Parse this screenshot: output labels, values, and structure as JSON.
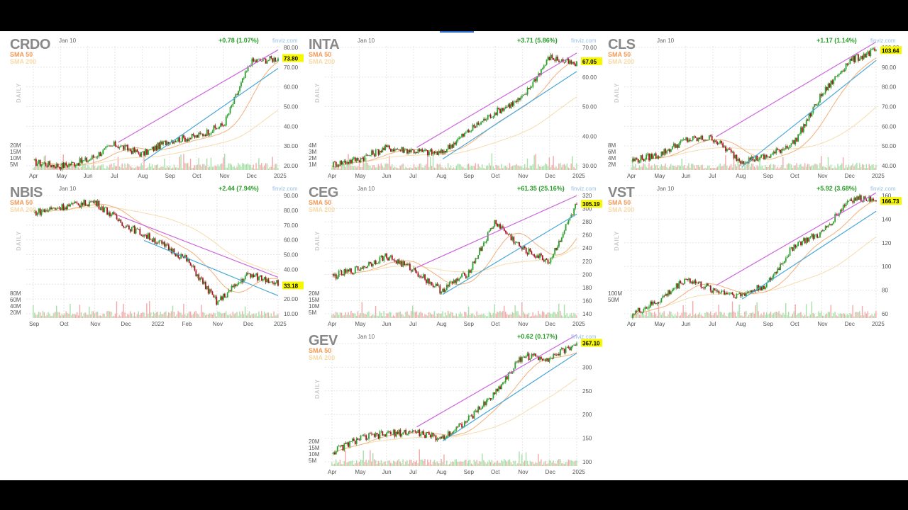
{
  "panels": [
    {
      "ticker": "CRDO",
      "date": "Jan 10",
      "change": "+0.78 (1.07%)",
      "price": "73.80",
      "source": "finviz.com",
      "sma50": "SMA 50",
      "sma200": "SMA 200",
      "daily": "DAILY",
      "yticks": [
        "80.00",
        "70.00",
        "60.00",
        "50.00",
        "40.00",
        "30.00",
        "20.00"
      ],
      "vticks": [
        "20M",
        "15M",
        "10M",
        "5M"
      ],
      "xticks": [
        "Apr",
        "May",
        "Jun",
        "Jul",
        "Aug",
        "Sep",
        "Oct",
        "Nov",
        "Dec",
        "2025"
      ]
    },
    {
      "ticker": "INTA",
      "date": "Jan 10",
      "change": "+3.71 (5.86%)",
      "price": "67.05",
      "source": "finviz.com",
      "sma50": "SMA 50",
      "sma200": "SMA 200",
      "daily": "DAILY",
      "yticks": [
        "70.00",
        "60.00",
        "50.00",
        "40.00",
        "30.00"
      ],
      "vticks": [
        "4M",
        "3M",
        "2M",
        "1M"
      ],
      "xticks": [
        "Apr",
        "May",
        "Jun",
        "Jul",
        "Aug",
        "Sep",
        "Oct",
        "Nov",
        "Dec",
        "2025"
      ]
    },
    {
      "ticker": "CLS",
      "date": "Jan 10",
      "change": "+1.17 (1.14%)",
      "price": "103.64",
      "source": "finviz.com",
      "sma50": "SMA 50",
      "sma200": "SMA 200",
      "daily": "DAILY",
      "yticks": [
        "100.00",
        "90.00",
        "80.00",
        "70.00",
        "60.00",
        "50.00",
        "40.00"
      ],
      "vticks": [
        "8M",
        "6M",
        "4M",
        "2M"
      ],
      "xticks": [
        "Apr",
        "May",
        "Jun",
        "Jul",
        "Aug",
        "Sep",
        "Oct",
        "Nov",
        "Dec",
        "2025"
      ]
    },
    {
      "ticker": "NBIS",
      "date": "Jan 10",
      "change": "+2.44 (7.94%)",
      "price": "33.18",
      "source": "finviz.com",
      "sma50": "SMA 50",
      "sma200": "SMA 200",
      "daily": "DAILY",
      "yticks": [
        "90.00",
        "80.00",
        "70.00",
        "60.00",
        "50.00",
        "40.00",
        "30.00",
        "20.00",
        "10.00"
      ],
      "vticks": [
        "80M",
        "60M",
        "40M",
        "20M"
      ],
      "xticks": [
        "Sep",
        "Oct",
        "Nov",
        "Dec",
        "2022",
        "Feb",
        "Nov",
        "Dec",
        "2025"
      ]
    },
    {
      "ticker": "CEG",
      "date": "Jan 10",
      "change": "+61.35 (25.16%)",
      "price": "305.19",
      "source": "finviz.com",
      "sma50": "SMA 50",
      "sma200": "SMA 200",
      "daily": "DAILY",
      "yticks": [
        "320",
        "300",
        "280",
        "260",
        "240",
        "220",
        "200",
        "180",
        "160",
        "140"
      ],
      "vticks": [
        "20M",
        "15M",
        "10M",
        "5M"
      ],
      "xticks": [
        "Apr",
        "May",
        "Jun",
        "Jul",
        "Aug",
        "Sep",
        "Oct",
        "Nov",
        "Dec",
        "2025"
      ]
    },
    {
      "ticker": "VST",
      "date": "Jan 10",
      "change": "+5.92 (3.68%)",
      "price": "166.73",
      "source": "finviz.com",
      "sma50": "SMA 50",
      "sma200": "SMA 200",
      "daily": "DAILY",
      "yticks": [
        "160",
        "140",
        "120",
        "100",
        "80",
        "60"
      ],
      "vticks": [
        "100M",
        "50M"
      ],
      "xticks": [
        "Apr",
        "May",
        "Jun",
        "Jul",
        "Aug",
        "Sep",
        "Oct",
        "Nov",
        "Dec",
        "2025"
      ]
    },
    {
      "ticker": "GEV",
      "date": "Jan 10",
      "change": "+0.62 (0.17%)",
      "price": "367.10",
      "source": "finviz.com",
      "sma50": "SMA 50",
      "sma200": "SMA 200",
      "daily": "DAILY",
      "yticks": [
        "350",
        "300",
        "250",
        "200",
        "150",
        "100"
      ],
      "vticks": [
        "20M",
        "15M",
        "10M",
        "5M"
      ],
      "xticks": [
        "Apr",
        "May",
        "Jun",
        "Jul",
        "Aug",
        "Sep",
        "Oct",
        "Nov",
        "Dec",
        "2025"
      ]
    }
  ],
  "chart_data": [
    {
      "type": "line",
      "ticker": "CRDO",
      "x": [
        "Apr",
        "May",
        "Jun",
        "Jul",
        "Aug",
        "Sep",
        "Oct",
        "Nov",
        "Dec",
        "2025"
      ],
      "y": [
        21,
        19,
        22,
        30,
        25,
        32,
        34,
        40,
        72,
        73.8
      ],
      "ylim": [
        17,
        80
      ]
    },
    {
      "type": "line",
      "ticker": "INTA",
      "x": [
        "Apr",
        "May",
        "Jun",
        "Jul",
        "Aug",
        "Sep",
        "Oct",
        "Nov",
        "Dec",
        "2025"
      ],
      "y": [
        31,
        33,
        37,
        36,
        35,
        43,
        50,
        55,
        70,
        67.05
      ],
      "ylim": [
        29,
        74
      ]
    },
    {
      "type": "line",
      "ticker": "CLS",
      "x": [
        "Apr",
        "May",
        "Jun",
        "Jul",
        "Aug",
        "Sep",
        "Oct",
        "Nov",
        "Dec",
        "2025"
      ],
      "y": [
        45,
        48,
        56,
        57,
        45,
        47,
        55,
        80,
        98,
        103.64
      ],
      "ylim": [
        40,
        106
      ]
    },
    {
      "type": "line",
      "ticker": "NBIS",
      "x": [
        "Sep",
        "Oct",
        "Nov",
        "Dec",
        "2022",
        "Feb",
        "Nov",
        "Dec",
        "2025"
      ],
      "y": [
        78,
        82,
        85,
        70,
        60,
        48,
        20,
        38,
        33.18
      ],
      "ylim": [
        10,
        90
      ]
    },
    {
      "type": "line",
      "ticker": "CEG",
      "x": [
        "Apr",
        "May",
        "Jun",
        "Jul",
        "Aug",
        "Sep",
        "Oct",
        "Nov",
        "Dec",
        "2025"
      ],
      "y": [
        200,
        212,
        230,
        210,
        180,
        205,
        280,
        240,
        222,
        305.19
      ],
      "ylim": [
        140,
        320
      ]
    },
    {
      "type": "line",
      "ticker": "VST",
      "x": [
        "Apr",
        "May",
        "Jun",
        "Jul",
        "Aug",
        "Sep",
        "Oct",
        "Nov",
        "Dec",
        "2025"
      ],
      "y": [
        63,
        75,
        95,
        85,
        80,
        90,
        125,
        135,
        165,
        166.73
      ],
      "ylim": [
        60,
        170
      ]
    },
    {
      "type": "line",
      "ticker": "GEV",
      "x": [
        "Apr",
        "May",
        "Jun",
        "Jul",
        "Aug",
        "Sep",
        "Oct",
        "Nov",
        "Dec",
        "2025"
      ],
      "y": [
        130,
        160,
        170,
        175,
        160,
        200,
        260,
        340,
        335,
        367.1
      ],
      "ylim": [
        100,
        370
      ]
    }
  ]
}
